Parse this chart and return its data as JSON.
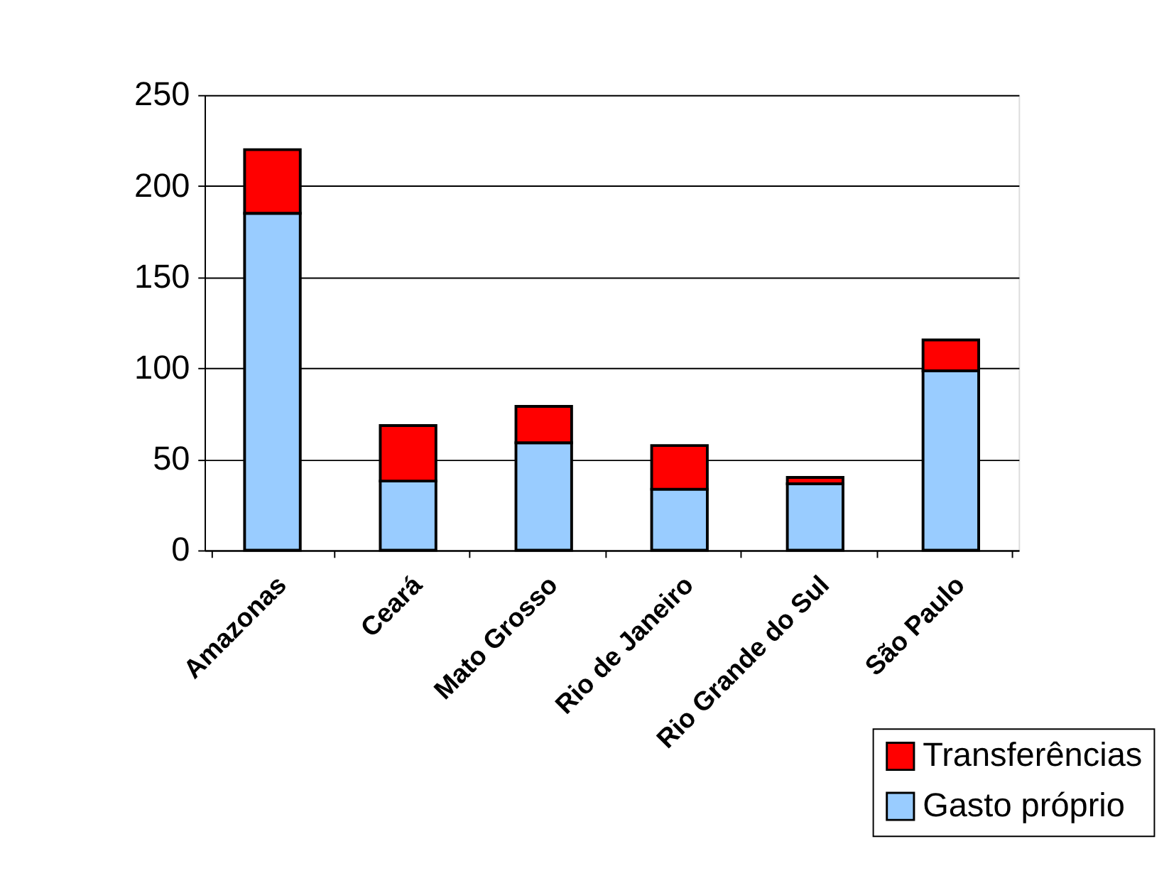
{
  "chart_data": {
    "type": "bar",
    "stacked": true,
    "categories": [
      "Amazonas",
      "Ceará",
      "Mato Grosso",
      "Rio de Janeiro",
      "Rio Grande do Sul",
      "São Paulo"
    ],
    "series": [
      {
        "name": "Gasto próprio",
        "color": "#99ccff",
        "values": [
          185,
          38,
          59,
          33.5,
          36.5,
          98.5
        ]
      },
      {
        "name": "Transferências",
        "color": "#ff0000",
        "values": [
          35,
          30.5,
          20,
          24,
          3.5,
          17
        ]
      }
    ],
    "ylim": [
      0,
      250
    ],
    "yticks": [
      0,
      50,
      100,
      150,
      200,
      250
    ],
    "grid": "y",
    "legend": "bottom right"
  }
}
